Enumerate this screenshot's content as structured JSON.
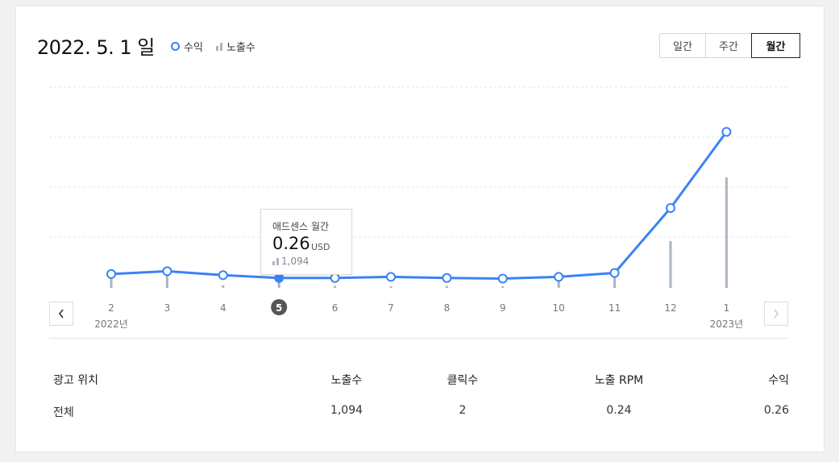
{
  "header": {
    "date_title": "2022. 5. 1 일",
    "legend_revenue": "수익",
    "legend_impressions": "노출수"
  },
  "period_tabs": [
    {
      "label": "일간",
      "active": false
    },
    {
      "label": "주간",
      "active": false
    },
    {
      "label": "월간",
      "active": true
    }
  ],
  "nav": {
    "prev_icon": "chevron-left-icon",
    "next_icon": "chevron-right-icon"
  },
  "tooltip": {
    "title": "애드센스 월간",
    "value": "0.26",
    "unit": "USD",
    "impressions": "1,094"
  },
  "colors": {
    "revenue_line": "#3b82f6",
    "impression_bar": "#aab5c1"
  },
  "chart_data": {
    "type": "line",
    "categories": [
      "2",
      "3",
      "4",
      "5",
      "6",
      "7",
      "8",
      "9",
      "10",
      "11",
      "12",
      "1"
    ],
    "year_labels": [
      {
        "index": 0,
        "label": "2022년"
      },
      {
        "index": 11,
        "label": "2023년"
      }
    ],
    "selected_index": 3,
    "series": [
      {
        "name": "수익",
        "values": [
          0.33,
          0.38,
          0.31,
          0.26,
          0.26,
          0.28,
          0.26,
          0.25,
          0.28,
          0.35,
          1.5,
          2.85
        ]
      },
      {
        "name": "노출수",
        "values": [
          1400,
          1600,
          200,
          1094,
          150,
          120,
          150,
          120,
          1200,
          1300,
          3600,
          8500
        ]
      }
    ],
    "grid": true,
    "legend": "top-left"
  },
  "table": {
    "headers": [
      "광고 위치",
      "노출수",
      "클릭수",
      "노출 RPM",
      "수익"
    ],
    "rows": [
      [
        "전체",
        "1,094",
        "2",
        "0.24",
        "0.26"
      ]
    ]
  }
}
